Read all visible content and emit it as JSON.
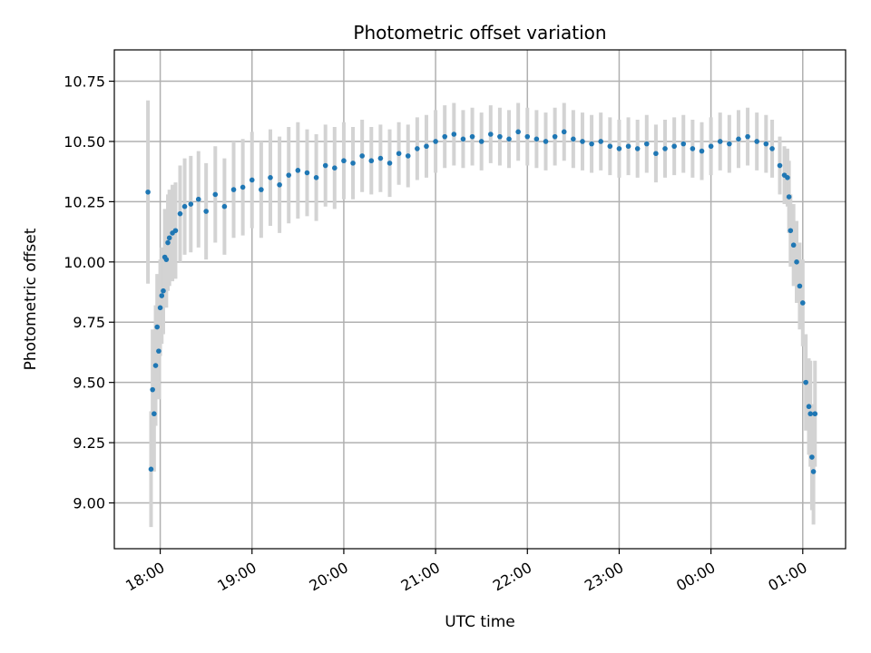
{
  "chart_data": {
    "type": "scatter",
    "title": "Photometric offset variation",
    "xlabel": "UTC time",
    "ylabel": "Photometric offset",
    "x_axis_type": "time",
    "x_tick_labels": [
      "18:00",
      "19:00",
      "20:00",
      "21:00",
      "22:00",
      "23:00",
      "00:00",
      "01:00"
    ],
    "y_ticks": [
      9.0,
      9.25,
      9.5,
      9.75,
      10.0,
      10.25,
      10.5,
      10.75
    ],
    "y_tick_labels": [
      "9.00",
      "9.25",
      "9.50",
      "9.75",
      "10.00",
      "10.25",
      "10.50",
      "10.75"
    ],
    "xlim": [
      "17:30",
      "01:28"
    ],
    "ylim": [
      8.81,
      10.88
    ],
    "grid": true,
    "colors": {
      "points": "#1f77b4",
      "error_bars": "#d3d3d3"
    },
    "series": [
      {
        "marker": "point",
        "error_bars": true,
        "x": [
          "17:52",
          "17:54",
          "17:55",
          "17:56",
          "17:57",
          "17:58",
          "17:59",
          "18:00",
          "18:01",
          "18:02",
          "18:03",
          "18:04",
          "18:05",
          "18:06",
          "18:08",
          "18:10",
          "18:13",
          "18:16",
          "18:20",
          "18:25",
          "18:30",
          "18:36",
          "18:42",
          "18:48",
          "18:54",
          "19:00",
          "19:06",
          "19:12",
          "19:18",
          "19:24",
          "19:30",
          "19:36",
          "19:42",
          "19:48",
          "19:54",
          "20:00",
          "20:06",
          "20:12",
          "20:18",
          "20:24",
          "20:30",
          "20:36",
          "20:42",
          "20:48",
          "20:54",
          "21:00",
          "21:06",
          "21:12",
          "21:18",
          "21:24",
          "21:30",
          "21:36",
          "21:42",
          "21:48",
          "21:54",
          "22:00",
          "22:06",
          "22:12",
          "22:18",
          "22:24",
          "22:30",
          "22:36",
          "22:42",
          "22:48",
          "22:54",
          "23:00",
          "23:06",
          "23:12",
          "23:18",
          "23:24",
          "23:30",
          "23:36",
          "23:42",
          "23:48",
          "23:54",
          "00:00",
          "00:06",
          "00:12",
          "00:18",
          "00:24",
          "00:30",
          "00:36",
          "00:40",
          "00:45",
          "00:48",
          "00:50",
          "00:51",
          "00:52",
          "00:54",
          "00:56",
          "00:58",
          "01:00",
          "01:02",
          "01:04",
          "01:05",
          "01:06",
          "01:07",
          "01:08"
        ],
        "y": [
          10.29,
          9.14,
          9.47,
          9.37,
          9.57,
          9.73,
          9.63,
          9.81,
          9.86,
          9.88,
          10.02,
          10.01,
          10.08,
          10.1,
          10.12,
          10.13,
          10.2,
          10.23,
          10.24,
          10.26,
          10.21,
          10.28,
          10.23,
          10.3,
          10.31,
          10.34,
          10.3,
          10.35,
          10.32,
          10.36,
          10.38,
          10.37,
          10.35,
          10.4,
          10.39,
          10.42,
          10.41,
          10.44,
          10.42,
          10.43,
          10.41,
          10.45,
          10.44,
          10.47,
          10.48,
          10.5,
          10.52,
          10.53,
          10.51,
          10.52,
          10.5,
          10.53,
          10.52,
          10.51,
          10.54,
          10.52,
          10.51,
          10.5,
          10.52,
          10.54,
          10.51,
          10.5,
          10.49,
          10.5,
          10.48,
          10.47,
          10.48,
          10.47,
          10.49,
          10.45,
          10.47,
          10.48,
          10.49,
          10.47,
          10.46,
          10.48,
          10.5,
          10.49,
          10.51,
          10.52,
          10.5,
          10.49,
          10.47,
          10.4,
          10.36,
          10.35,
          10.27,
          10.13,
          10.07,
          10.0,
          9.9,
          9.83,
          9.5,
          9.4,
          9.37,
          9.19,
          9.13,
          9.37
        ],
        "y_err": [
          0.38,
          0.24,
          0.25,
          0.24,
          0.25,
          0.22,
          0.2,
          0.2,
          0.2,
          0.18,
          0.2,
          0.2,
          0.2,
          0.2,
          0.2,
          0.2,
          0.2,
          0.2,
          0.2,
          0.2,
          0.2,
          0.2,
          0.2,
          0.2,
          0.2,
          0.2,
          0.2,
          0.2,
          0.2,
          0.2,
          0.2,
          0.18,
          0.18,
          0.17,
          0.17,
          0.16,
          0.15,
          0.15,
          0.14,
          0.14,
          0.14,
          0.13,
          0.13,
          0.13,
          0.13,
          0.13,
          0.13,
          0.13,
          0.12,
          0.12,
          0.12,
          0.12,
          0.12,
          0.12,
          0.12,
          0.12,
          0.12,
          0.12,
          0.12,
          0.12,
          0.12,
          0.12,
          0.12,
          0.12,
          0.12,
          0.12,
          0.12,
          0.12,
          0.12,
          0.12,
          0.12,
          0.12,
          0.12,
          0.12,
          0.12,
          0.12,
          0.12,
          0.12,
          0.12,
          0.12,
          0.12,
          0.12,
          0.12,
          0.12,
          0.12,
          0.12,
          0.15,
          0.15,
          0.17,
          0.17,
          0.18,
          0.18,
          0.2,
          0.2,
          0.22,
          0.22,
          0.22,
          0.22
        ]
      }
    ]
  }
}
